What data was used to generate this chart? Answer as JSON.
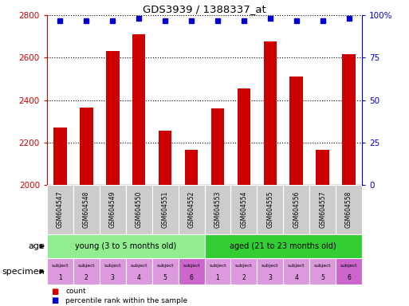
{
  "title": "GDS3939 / 1388337_at",
  "samples": [
    "GSM604547",
    "GSM604548",
    "GSM604549",
    "GSM604550",
    "GSM604551",
    "GSM604552",
    "GSM604553",
    "GSM604554",
    "GSM604555",
    "GSM604556",
    "GSM604557",
    "GSM604558"
  ],
  "counts": [
    2270,
    2365,
    2630,
    2710,
    2255,
    2165,
    2360,
    2455,
    2675,
    2510,
    2165,
    2615
  ],
  "percentile_ranks": [
    97,
    97,
    97,
    98,
    97,
    97,
    97,
    97,
    98,
    97,
    97,
    98
  ],
  "bar_color": "#cc0000",
  "dot_color": "#0000cc",
  "ylim_left": [
    2000,
    2800
  ],
  "ylim_right": [
    0,
    100
  ],
  "yticks_left": [
    2000,
    2200,
    2400,
    2600,
    2800
  ],
  "yticks_right": [
    0,
    25,
    50,
    75,
    100
  ],
  "ytick_labels_right": [
    "0",
    "25",
    "50",
    "75",
    "100%"
  ],
  "age_young": "young (3 to 5 months old)",
  "age_aged": "aged (21 to 23 months old)",
  "age_young_color": "#90ee90",
  "age_aged_color": "#32cd32",
  "specimen_light": "#dd99dd",
  "specimen_dark": "#cc66cc",
  "legend_count_color": "#cc0000",
  "legend_dot_color": "#0000cc",
  "xticklabel_bg": "#cccccc",
  "bar_width": 0.5
}
